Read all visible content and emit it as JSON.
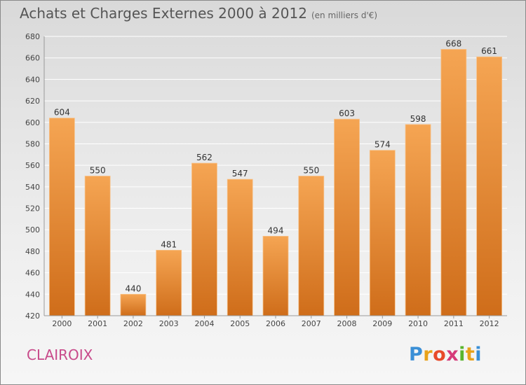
{
  "title": "Achats et Charges Externes 2000 à 2012",
  "subtitle": "(en milliers d'€)",
  "commune": "CLAIROIX",
  "logo": {
    "letters": [
      "P",
      "r",
      "o",
      "x",
      "i",
      "t",
      "i"
    ],
    "colors": [
      "#3a8fd6",
      "#e8a21a",
      "#e84a2a",
      "#d63a7a",
      "#5ab52e",
      "#e8a21a",
      "#3a8fd6"
    ]
  },
  "colors": {
    "bar_top": "#f5a553",
    "bar_bottom": "#cf6d1a",
    "grid": "#ffffff",
    "axis": "#999999"
  },
  "chart_data": {
    "type": "bar",
    "title": "Achats et Charges Externes 2000 à 2012",
    "subtitle": "(en milliers d'€)",
    "categories": [
      "2000",
      "2001",
      "2002",
      "2003",
      "2004",
      "2005",
      "2006",
      "2007",
      "2008",
      "2009",
      "2010",
      "2011",
      "2012"
    ],
    "values": [
      604,
      550,
      440,
      481,
      562,
      547,
      494,
      550,
      603,
      574,
      598,
      668,
      661
    ],
    "ylim": [
      420,
      680
    ],
    "yticks": [
      420,
      440,
      460,
      480,
      500,
      520,
      540,
      560,
      580,
      600,
      620,
      640,
      660,
      680
    ],
    "grid": true,
    "data_labels": true
  }
}
